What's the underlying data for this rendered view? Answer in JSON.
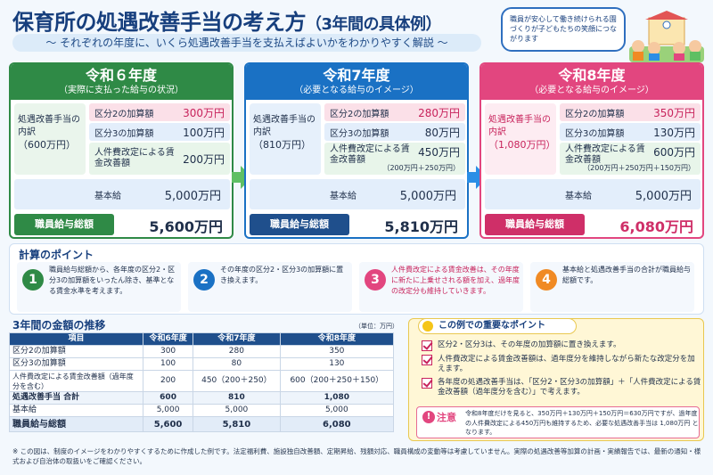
{
  "header": {
    "title": "保育所の処遇改善手当の考え方",
    "title_sub": "（3年間の具体例）",
    "subtitle": "～ それぞれの年度に、いくら処遇改善手当を支払えばよいかをわかりやすく解説 ～",
    "bubble": "職員が安心して働き続けられる園づくりが子どもたちの笑顔につながります"
  },
  "panels": [
    {
      "year": "令和６年度",
      "note": "（実際に支払った給与の状況）",
      "label": "処遇改善手当の内訳",
      "label_amount": "（600万円）",
      "rows": [
        {
          "label": "区分2の加算額",
          "value": "300万円"
        },
        {
          "label": "区分3の加算額",
          "value": "100万円"
        },
        {
          "label": "人件費改定による賃金改善額",
          "value": "200万円",
          "breakdown": ""
        }
      ],
      "base_label": "基本給",
      "base_value": "5,000万円",
      "total_label": "職員給与総額",
      "total_value": "5,600万円"
    },
    {
      "year": "令和7年度",
      "note": "（必要となる給与のイメージ）",
      "label": "処遇改善手当の内訳",
      "label_amount": "（810万円）",
      "rows": [
        {
          "label": "区分2の加算額",
          "value": "280万円"
        },
        {
          "label": "区分3の加算額",
          "value": "80万円"
        },
        {
          "label": "人件費改定による賃金改善額",
          "value": "450万円",
          "breakdown": "（200万円＋250万円）"
        }
      ],
      "base_label": "基本給",
      "base_value": "5,000万円",
      "total_label": "職員給与総額",
      "total_value": "5,810万円"
    },
    {
      "year": "令和8年度",
      "note": "（必要となる給与のイメージ）",
      "label": "処遇改善手当の内訳",
      "label_amount": "（1,080万円）",
      "rows": [
        {
          "label": "区分2の加算額",
          "value": "350万円"
        },
        {
          "label": "区分3の加算額",
          "value": "130万円"
        },
        {
          "label": "人件費改定による賃金改善額",
          "value": "600万円",
          "breakdown": "（200万円＋250万円＋150万円）"
        }
      ],
      "base_label": "基本給",
      "base_value": "5,000万円",
      "total_label": "職員給与総額",
      "total_value": "6,080万円"
    }
  ],
  "points": {
    "title": "計算のポイント",
    "items": [
      {
        "num": "1",
        "color": "#2f8a46",
        "text": "職員給与総額から、各年度の区分2・区分3の加算額をいったん除き、基準となる賃金水準を考えます。"
      },
      {
        "num": "2",
        "color": "#1a71c4",
        "text": "その年度の区分2・区分3の加算額に置き換えます。"
      },
      {
        "num": "3",
        "color": "#e2467f",
        "text": "人件費改定による賃金改善は、その年度に新たに上乗せされる額を加え、過年度の改定分も維持していきます。"
      },
      {
        "num": "4",
        "color": "#f08a24",
        "text": "基本給と処遇改善手当の合計が職員給与総額です。"
      }
    ]
  },
  "table": {
    "title": "3年間の金額の推移",
    "unit": "（単位：万円）",
    "headers": [
      "項目",
      "令和6年度",
      "令和7年度",
      "令和8年度"
    ],
    "rows": [
      [
        "区分2の加算額",
        "300",
        "280",
        "350"
      ],
      [
        "区分3の加算額",
        "100",
        "80",
        "130"
      ],
      [
        "人件費改定による賃金改善額（過年度分を含む）",
        "200",
        "450（200＋250）",
        "600（200＋250＋150）"
      ],
      [
        "処遇改善手当 合計",
        "600",
        "810",
        "1,080"
      ],
      [
        "基本給",
        "5,000",
        "5,000",
        "5,000"
      ],
      [
        "職員給与総額",
        "5,600",
        "5,810",
        "6,080"
      ]
    ]
  },
  "important": {
    "title": "この例での重要なポイント",
    "items": [
      "区分2・区分3は、その年度の加算額に置き換えます。",
      "人件費改定による賃金改善額は、過年度分を維持しながら新たな改定分を加えます。",
      "各年度の処遇改善手当は、「区分2・区分3の加算額」＋「人件費改定による賃金改善額（過年度分を含む）」で考えます。"
    ],
    "caution_label": "注意",
    "caution_text": "令和8年度だけを見ると、350万円＋130万円＋150万円＝630万円ですが、過年度の人件費改定による450万円も維持するため、必要な処遇改善手当は 1,080万円 となります。"
  },
  "footnote": "※ この図は、制度のイメージをわかりやすくするために作成した例です。法定福利費、施設独自改善額、定期昇給、残額対応、職員構成の変動等は考慮していません。実際の処遇改善等加算の計画・実績報告では、最新の通知・様式および自治体の取扱いをご確認ください。"
}
